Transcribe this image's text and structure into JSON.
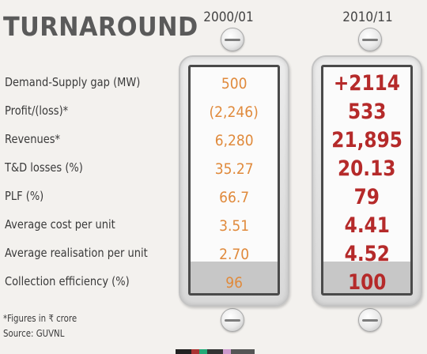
{
  "title": "TURNAROUND",
  "columns": [
    {
      "year": "2000/01"
    },
    {
      "year": "2010/11"
    }
  ],
  "rows": [
    {
      "label": "Demand-Supply gap (MW)",
      "v2000": "500",
      "v2010": "+2114"
    },
    {
      "label": "Profit/(loss)*",
      "v2000": "(2,246)",
      "v2010": "533"
    },
    {
      "label": "Revenues*",
      "v2000": "6,280",
      "v2010": "21,895"
    },
    {
      "label": "T&D losses (%)",
      "v2000": "35.27",
      "v2010": "20.13"
    },
    {
      "label": "PLF (%)",
      "v2000": "66.7",
      "v2010": "79"
    },
    {
      "label": "Average cost per unit",
      "v2000": "3.51",
      "v2010": "4.41"
    },
    {
      "label": "Average realisation per unit",
      "v2000": "2.70",
      "v2010": "4.52"
    },
    {
      "label": "Collection efficiency (%)",
      "v2000": "96",
      "v2010": "100"
    }
  ],
  "footnote": {
    "note": "*Figures in ₹ crore",
    "source": "Source: GUVNL"
  },
  "colors": {
    "old_values": "#e08a3c",
    "new_values": "#b52a2a"
  }
}
